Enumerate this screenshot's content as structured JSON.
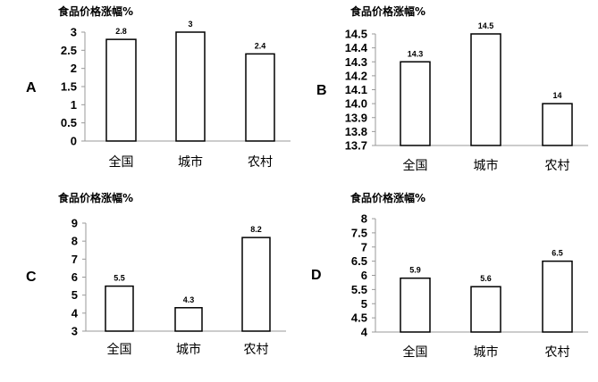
{
  "chart_data": [
    {
      "panel": "A",
      "type": "bar",
      "title": "食品价格涨幅%",
      "categories": [
        "全国",
        "城市",
        "农村"
      ],
      "values": [
        2.8,
        3,
        2.4
      ],
      "value_labels": [
        "2.8",
        "3",
        "2.4"
      ],
      "ylim": [
        0,
        3
      ],
      "yticks": [
        "0",
        "0.5",
        "1",
        "1.5",
        "2",
        "2.5",
        "3"
      ],
      "ytick_values": [
        0,
        0.5,
        1,
        1.5,
        2,
        2.5,
        3
      ],
      "grid": false,
      "legend": "none"
    },
    {
      "panel": "B",
      "type": "bar",
      "title": "食品价格涨幅%",
      "categories": [
        "全国",
        "城市",
        "农村"
      ],
      "values": [
        14.3,
        14.5,
        14
      ],
      "value_labels": [
        "14.3",
        "14.5",
        "14"
      ],
      "ylim": [
        13.7,
        14.5
      ],
      "yticks": [
        "13.7",
        "13.8",
        "13.9",
        "14.0",
        "14.1",
        "14.2",
        "14.3",
        "14.4",
        "14.5"
      ],
      "ytick_values": [
        13.7,
        13.8,
        13.9,
        14.0,
        14.1,
        14.2,
        14.3,
        14.4,
        14.5
      ],
      "grid": false,
      "legend": "none"
    },
    {
      "panel": "C",
      "type": "bar",
      "title": "食品价格涨幅%",
      "categories": [
        "全国",
        "城市",
        "农村"
      ],
      "values": [
        5.5,
        4.3,
        8.2
      ],
      "value_labels": [
        "5.5",
        "4.3",
        "8.2"
      ],
      "ylim": [
        3,
        9
      ],
      "yticks": [
        "3",
        "4",
        "5",
        "6",
        "7",
        "8",
        "9"
      ],
      "ytick_values": [
        3,
        4,
        5,
        6,
        7,
        8,
        9
      ],
      "grid": false,
      "legend": "none"
    },
    {
      "panel": "D",
      "type": "bar",
      "title": "食品价格涨幅%",
      "categories": [
        "全国",
        "城市",
        "农村"
      ],
      "values": [
        5.9,
        5.6,
        6.5
      ],
      "value_labels": [
        "5.9",
        "5.6",
        "6.5"
      ],
      "ylim": [
        4,
        8
      ],
      "yticks": [
        "4",
        "4.5",
        "5",
        "5.5",
        "6",
        "6.5",
        "7",
        "7.5",
        "8"
      ],
      "ytick_values": [
        4,
        4.5,
        5,
        5.5,
        6,
        6.5,
        7,
        7.5,
        8
      ],
      "grid": false,
      "legend": "none"
    }
  ]
}
